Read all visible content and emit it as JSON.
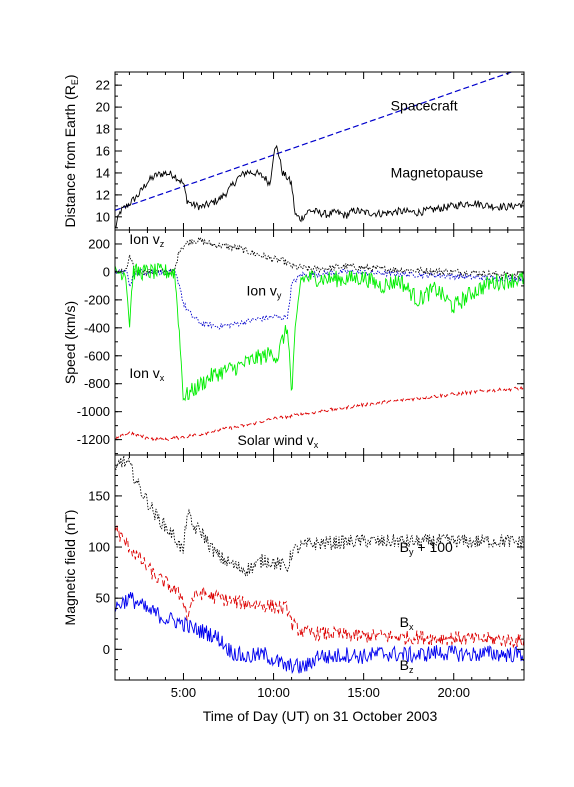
{
  "chart_data": [
    {
      "type": "line",
      "ylabel": "Distance from Earth (R",
      "ylabel_sub": "E",
      "ylabel_tail": ")",
      "xlim": [
        1.2,
        23.9
      ],
      "ylim": [
        8.8,
        23.2
      ],
      "yticks": [
        10,
        12,
        14,
        16,
        18,
        20,
        22
      ],
      "annotations": [
        {
          "text": "Spacecraft",
          "x": 16.5,
          "y": 19.7
        },
        {
          "text": "Magnetopause",
          "x": 16.5,
          "y": 13.6
        }
      ],
      "series": [
        {
          "name": "Spacecraft",
          "color": "#0000cc",
          "dash": "dashed",
          "x": [
            1.2,
            23.9
          ],
          "y": [
            10.6,
            23.6
          ]
        },
        {
          "name": "Magnetopause",
          "color": "#000000",
          "dash": "solid",
          "noise": 0.35,
          "x": [
            1.2,
            1.5,
            2.0,
            2.5,
            3.0,
            3.5,
            4.0,
            4.5,
            5.0,
            5.2,
            5.5,
            6.0,
            6.5,
            7.0,
            7.5,
            8.0,
            8.5,
            9.0,
            9.5,
            9.8,
            10.0,
            10.2,
            10.5,
            10.8,
            11.0,
            11.2,
            11.5,
            12.0,
            12.5,
            13.0,
            13.5,
            14.0,
            14.5,
            15.0,
            16.0,
            17.0,
            18.0,
            19.0,
            20.0,
            21.0,
            22.0,
            23.0,
            23.9
          ],
          "y": [
            8.9,
            10.5,
            11.2,
            12.0,
            13.2,
            13.8,
            14.0,
            13.8,
            13.0,
            11.5,
            11.1,
            10.9,
            11.2,
            11.6,
            12.4,
            13.5,
            14.1,
            14.0,
            13.6,
            13.0,
            15.8,
            16.4,
            14.0,
            13.5,
            13.0,
            10.2,
            9.8,
            10.6,
            10.4,
            10.2,
            10.4,
            10.1,
            10.6,
            10.4,
            10.3,
            10.5,
            10.4,
            10.7,
            11.0,
            11.3,
            11.0,
            10.9,
            11.2
          ]
        }
      ]
    },
    {
      "type": "line",
      "ylabel": "Speed (km/s)",
      "xlim": [
        1.2,
        23.9
      ],
      "ylim": [
        -1310,
        300
      ],
      "yticks": [
        -1200,
        -1000,
        -800,
        -600,
        -400,
        -200,
        0,
        200
      ],
      "annotations": [
        {
          "text": "Ion v",
          "sub": "z",
          "x": 2.0,
          "y": 200
        },
        {
          "text": "Ion v",
          "sub": "y",
          "x": 8.5,
          "y": -170
        },
        {
          "text": "Ion v",
          "sub": "x",
          "x": 2.0,
          "y": -760
        },
        {
          "text": "Solar wind v",
          "sub": "x",
          "x": 8.0,
          "y": -1240
        }
      ],
      "series": [
        {
          "name": "Ion vz",
          "color": "#000000",
          "dash": "dotted",
          "noise": 25,
          "x": [
            1.2,
            1.8,
            2.0,
            2.3,
            4.5,
            4.8,
            5.5,
            6.0,
            6.5,
            7.0,
            7.5,
            8.0,
            8.5,
            9.0,
            9.5,
            10.0,
            10.5,
            10.8,
            11.0,
            12.0,
            13.0,
            14.0,
            15.0,
            16.0,
            17.0,
            18.0,
            19.0,
            20.0,
            21.0,
            22.0,
            23.9
          ],
          "y": [
            10,
            0,
            110,
            0,
            0,
            170,
            230,
            220,
            200,
            190,
            180,
            170,
            150,
            130,
            110,
            90,
            80,
            60,
            40,
            20,
            25,
            40,
            30,
            20,
            15,
            10,
            5,
            0,
            -5,
            -15,
            -30
          ]
        },
        {
          "name": "Ion vy",
          "color": "#0000cc",
          "dash": "dotted",
          "noise": 20,
          "x": [
            1.2,
            1.9,
            2.0,
            2.3,
            4.5,
            4.8,
            5.0,
            5.5,
            6.0,
            7.0,
            8.0,
            9.0,
            10.0,
            10.5,
            10.8,
            11.0,
            11.5,
            12.0,
            14.0,
            16.0,
            18.0,
            20.0,
            22.0,
            23.9
          ],
          "y": [
            0,
            0,
            -120,
            0,
            0,
            -100,
            -230,
            -320,
            -370,
            -390,
            -370,
            -340,
            -320,
            -330,
            -310,
            -90,
            -20,
            -20,
            0,
            -10,
            -20,
            -30,
            -45,
            -50
          ]
        },
        {
          "name": "Ion vx",
          "color": "#00ee00",
          "dash": "solid",
          "noise": 60,
          "x": [
            1.2,
            1.8,
            2.0,
            2.2,
            2.4,
            4.5,
            4.7,
            5.0,
            5.5,
            6.0,
            6.5,
            7.0,
            7.5,
            8.0,
            8.5,
            9.0,
            9.5,
            10.0,
            10.2,
            10.5,
            10.8,
            11.0,
            11.2,
            11.5,
            12.0,
            13.0,
            14.0,
            15.0,
            16.0,
            17.0,
            18.0,
            19.0,
            20.0,
            21.0,
            22.0,
            23.0,
            23.9
          ],
          "y": [
            0,
            0,
            -380,
            0,
            0,
            0,
            -300,
            -900,
            -850,
            -800,
            -750,
            -720,
            -700,
            -680,
            -650,
            -620,
            -600,
            -580,
            -620,
            -480,
            -400,
            -900,
            -450,
            -50,
            -40,
            -50,
            -50,
            -40,
            -100,
            -60,
            -200,
            -120,
            -250,
            -150,
            -80,
            -60,
            -50
          ]
        },
        {
          "name": "Solar wind vx",
          "color": "#dd0000",
          "dash": "dashed",
          "noise": 12,
          "x": [
            1.2,
            1.5,
            2.0,
            3.0,
            4.0,
            5.0,
            6.0,
            7.0,
            8.0,
            9.0,
            10.0,
            11.0,
            12.0,
            13.0,
            14.0,
            15.0,
            16.0,
            17.0,
            18.0,
            19.0,
            20.0,
            21.0,
            22.0,
            23.0,
            23.9
          ],
          "y": [
            -1200,
            -1180,
            -1150,
            -1190,
            -1200,
            -1180,
            -1160,
            -1130,
            -1110,
            -1080,
            -1050,
            -1030,
            -1010,
            -990,
            -970,
            -950,
            -935,
            -920,
            -905,
            -890,
            -875,
            -860,
            -850,
            -840,
            -830
          ]
        }
      ]
    },
    {
      "type": "line",
      "ylabel": "Magnetic field (nT)",
      "xlabel": "Time of Day (UT) on  31 October 2003",
      "xlim": [
        1.2,
        23.9
      ],
      "ylim": [
        -30,
        190
      ],
      "xticks": [
        5,
        10,
        15,
        20
      ],
      "xticklabels": [
        "5:00",
        "10:00",
        "15:00",
        "20:00"
      ],
      "yticks": [
        0,
        50,
        100,
        150
      ],
      "annotations": [
        {
          "text": "B",
          "sub": "y",
          "tail": " + 100",
          "x": 17.0,
          "y": 95
        },
        {
          "text": "B",
          "sub": "x",
          "x": 17.0,
          "y": 22
        },
        {
          "text": "B",
          "sub": "z",
          "x": 17.0,
          "y": -20
        }
      ],
      "series": [
        {
          "name": "By + 100",
          "color": "#000000",
          "dash": "dotted",
          "noise": 7,
          "x": [
            1.2,
            1.5,
            2.0,
            2.5,
            3.0,
            3.5,
            4.0,
            4.5,
            5.0,
            5.2,
            5.5,
            6.0,
            6.5,
            7.0,
            7.5,
            8.0,
            8.5,
            9.0,
            9.5,
            10.0,
            10.5,
            10.8,
            11.0,
            11.5,
            12.0,
            13.0,
            14.0,
            15.0,
            16.0,
            17.0,
            18.0,
            19.0,
            20.0,
            21.0,
            22.0,
            23.0,
            23.9
          ],
          "y": [
            170,
            185,
            180,
            160,
            145,
            130,
            120,
            110,
            95,
            135,
            120,
            115,
            100,
            90,
            85,
            80,
            78,
            82,
            88,
            85,
            82,
            80,
            95,
            100,
            103,
            104,
            105,
            106,
            105,
            106,
            105,
            106,
            106,
            105,
            106,
            106,
            104
          ]
        },
        {
          "name": "Bx",
          "color": "#dd0000",
          "dash": "dashed",
          "noise": 7,
          "x": [
            1.2,
            1.5,
            2.0,
            2.5,
            3.0,
            3.5,
            4.0,
            4.5,
            5.0,
            5.2,
            5.5,
            6.0,
            6.5,
            7.0,
            7.5,
            8.0,
            8.5,
            9.0,
            9.5,
            10.0,
            10.5,
            10.8,
            11.0,
            11.5,
            12.0,
            13.0,
            14.0,
            15.0,
            16.0,
            17.0,
            18.0,
            19.0,
            20.0,
            21.0,
            22.0,
            23.0,
            23.9
          ],
          "y": [
            120,
            110,
            100,
            90,
            80,
            70,
            65,
            58,
            50,
            30,
            50,
            55,
            52,
            50,
            48,
            46,
            45,
            44,
            43,
            42,
            40,
            40,
            25,
            18,
            16,
            15,
            14,
            13,
            13,
            12,
            12,
            11,
            11,
            10,
            10,
            9,
            8
          ]
        },
        {
          "name": "Bz",
          "color": "#0000ee",
          "dash": "solid",
          "noise": 8,
          "x": [
            1.2,
            1.5,
            2.0,
            2.5,
            3.0,
            3.5,
            4.0,
            4.5,
            5.0,
            5.5,
            6.0,
            6.5,
            7.0,
            7.5,
            8.0,
            8.5,
            9.0,
            9.5,
            10.0,
            10.5,
            10.8,
            11.0,
            11.5,
            12.0,
            12.5,
            13.0,
            14.0,
            15.0,
            16.0,
            17.0,
            18.0,
            19.0,
            20.0,
            21.0,
            22.0,
            23.0,
            23.9
          ],
          "y": [
            40,
            45,
            50,
            45,
            38,
            35,
            30,
            28,
            25,
            20,
            18,
            15,
            10,
            0,
            -5,
            -8,
            -6,
            -5,
            -10,
            -15,
            -18,
            -15,
            -18,
            -15,
            -5,
            -8,
            -5,
            -7,
            -4,
            -5,
            -6,
            -3,
            -4,
            -5,
            -4,
            -5,
            -5
          ]
        }
      ]
    }
  ]
}
